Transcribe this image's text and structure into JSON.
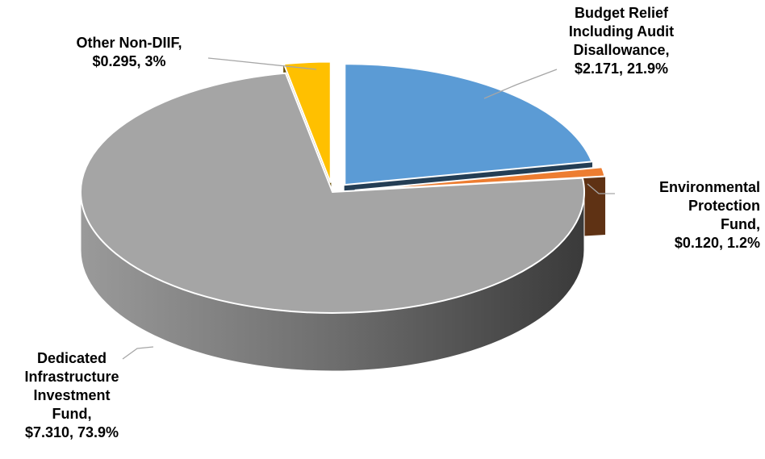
{
  "chart_data": {
    "type": "pie",
    "categories": [
      "Budget Relief Including Audit Disallowance,",
      "Environmental Protection Fund,",
      "Dedicated Infrastructure Investment Fund,",
      "Other Non-DIIF,"
    ],
    "values": [
      2.171,
      0.12,
      7.31,
      0.295
    ],
    "value_labels": [
      "$2.171, 21.9%",
      "$0.120, 1.2%",
      "$7.310, 73.9%",
      "$0.295, 3%"
    ],
    "colors": [
      "#5b9bd5",
      "#ed7d31",
      "#a5a5a5",
      "#ffc000"
    ]
  }
}
